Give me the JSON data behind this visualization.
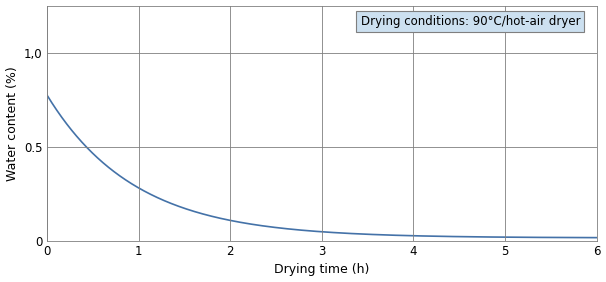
{
  "xlabel": "Drying time (h)",
  "ylabel": "Water content (%)",
  "xlim": [
    0,
    6
  ],
  "ylim": [
    0,
    1.25
  ],
  "yticks": [
    0,
    0.5,
    1.0
  ],
  "ytick_labels": [
    "0",
    "0.5",
    "1,0"
  ],
  "xticks": [
    0,
    1,
    2,
    3,
    4,
    5,
    6
  ],
  "annotation_text": "Drying conditions: 90°C/hot-air dryer",
  "line_color": "#4472a8",
  "grid_color": "#7f7f7f",
  "bg_color": "#ffffff",
  "decay_a": 0.76,
  "decay_b": 1.05,
  "decay_c": 0.015,
  "annotation_facecolor": "#cce0f0",
  "annotation_edgecolor": "#7f7f7f",
  "annotation_fontsize": 8.5,
  "axis_fontsize": 8.5,
  "label_fontsize": 9
}
